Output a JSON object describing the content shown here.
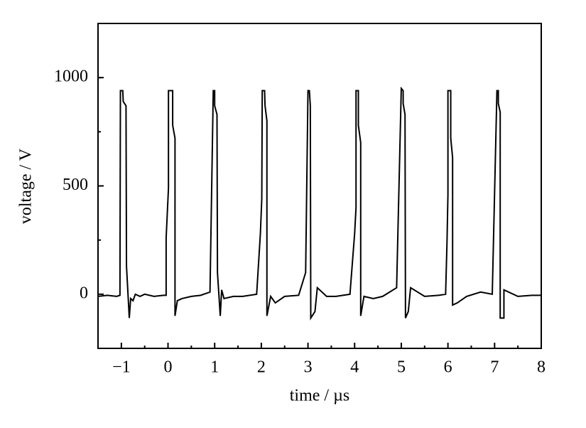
{
  "chart_data": {
    "type": "line",
    "xlabel": "time / µs",
    "ylabel": "voltage / V",
    "xlim": [
      -1.5,
      8
    ],
    "ylim": [
      -250,
      1250
    ],
    "xticks": [
      {
        "value": -1,
        "label": "−1"
      },
      0,
      1,
      2,
      3,
      4,
      5,
      6,
      7,
      8
    ],
    "yticks": [
      0,
      500,
      1000
    ],
    "minor_ticks": true,
    "x": [
      -1.5,
      -1.3,
      -1.1,
      -1.03,
      -1.02,
      -0.97,
      -0.96,
      -0.9,
      -0.89,
      -0.83,
      -0.8,
      -0.75,
      -0.7,
      -0.6,
      -0.5,
      -0.3,
      -0.1,
      -0.04,
      -0.04,
      0.01,
      0.01,
      0.1,
      0.1,
      0.15,
      0.15,
      0.2,
      0.3,
      0.5,
      0.7,
      0.9,
      0.97,
      1.0,
      1.0,
      1.05,
      1.06,
      1.12,
      1.15,
      1.2,
      1.4,
      1.6,
      1.9,
      1.98,
      2.01,
      2.02,
      2.07,
      2.08,
      2.12,
      2.12,
      2.2,
      2.3,
      2.5,
      2.8,
      2.95,
      3.0,
      3.03,
      3.05,
      3.06,
      3.15,
      3.2,
      3.4,
      3.6,
      3.9,
      4.0,
      4.03,
      4.03,
      4.08,
      4.08,
      4.13,
      4.13,
      4.2,
      4.4,
      4.6,
      4.9,
      5.0,
      5.04,
      5.04,
      5.08,
      5.09,
      5.15,
      5.2,
      5.5,
      5.8,
      5.95,
      5.98,
      6.0,
      6.0,
      6.06,
      6.06,
      6.1,
      6.1,
      6.2,
      6.4,
      6.7,
      6.95,
      7.05,
      7.08,
      7.08,
      7.12,
      7.12,
      7.2,
      7.2,
      7.5,
      7.8,
      8.0
    ],
    "series": [
      {
        "color": "#000000",
        "values": [
          -10,
          -5,
          -10,
          -5,
          940,
          940,
          890,
          870,
          130,
          -110,
          -20,
          -30,
          0,
          -10,
          0,
          -10,
          -5,
          -5,
          260,
          490,
          940,
          940,
          780,
          720,
          -100,
          -30,
          -20,
          -10,
          -5,
          10,
          940,
          940,
          870,
          830,
          100,
          -100,
          20,
          -20,
          -10,
          -10,
          0,
          280,
          440,
          940,
          940,
          870,
          800,
          -100,
          -10,
          -40,
          -10,
          -5,
          100,
          940,
          940,
          870,
          -110,
          -80,
          30,
          -10,
          -10,
          0,
          280,
          400,
          940,
          940,
          780,
          700,
          -100,
          -10,
          -20,
          -10,
          30,
          950,
          940,
          880,
          830,
          -110,
          -80,
          30,
          -10,
          -5,
          0,
          240,
          460,
          940,
          940,
          720,
          630,
          -50,
          -40,
          -10,
          10,
          0,
          940,
          940,
          880,
          840,
          -110,
          -110,
          20,
          -10,
          -5,
          -5
        ]
      }
    ]
  }
}
